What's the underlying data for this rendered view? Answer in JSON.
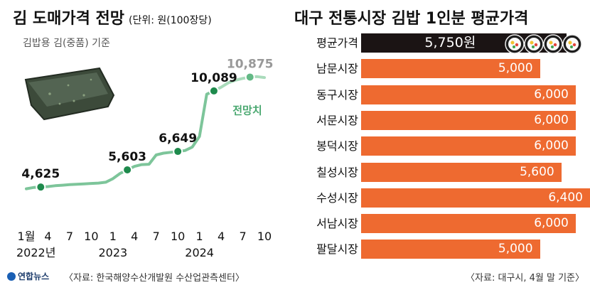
{
  "chart_data": [
    {
      "type": "line",
      "title": "김 도매가격 전망",
      "unit": "(단위: 원(100장당)",
      "subtitle": "김밥용 김(중품) 기준",
      "x_ticks": [
        "1월",
        "4",
        "7",
        "10",
        "1",
        "4",
        "7",
        "10",
        "1",
        "4",
        "7",
        "10"
      ],
      "year_labels": [
        "2022년",
        "2023",
        "2024"
      ],
      "series": [
        {
          "name": "",
          "points": [
            {
              "x": 0,
              "y": 4525
            },
            {
              "x": 1,
              "y": 4600
            },
            {
              "x": 2,
              "y": 4625
            },
            {
              "x": 3,
              "y": 4650
            },
            {
              "x": 4,
              "y": 4700
            },
            {
              "x": 5,
              "y": 4730
            },
            {
              "x": 6,
              "y": 4760
            },
            {
              "x": 7,
              "y": 4780
            },
            {
              "x": 8,
              "y": 4800
            },
            {
              "x": 9,
              "y": 4830
            },
            {
              "x": 10,
              "y": 4850
            },
            {
              "x": 11,
              "y": 4900
            },
            {
              "x": 12,
              "y": 5100
            },
            {
              "x": 13,
              "y": 5400
            },
            {
              "x": 14,
              "y": 5603
            },
            {
              "x": 15,
              "y": 5800
            },
            {
              "x": 16,
              "y": 5900
            },
            {
              "x": 17,
              "y": 5920
            },
            {
              "x": 18,
              "y": 6450
            },
            {
              "x": 19,
              "y": 6550
            },
            {
              "x": 20,
              "y": 6600
            },
            {
              "x": 21,
              "y": 6649
            },
            {
              "x": 22,
              "y": 6700
            },
            {
              "x": 23,
              "y": 6900
            },
            {
              "x": 24,
              "y": 7500
            },
            {
              "x": 25,
              "y": 9900
            },
            {
              "x": 26,
              "y": 10089
            }
          ]
        },
        {
          "name": "전망치",
          "points": [
            {
              "x": 26,
              "y": 10089
            },
            {
              "x": 27,
              "y": 10300
            },
            {
              "x": 28,
              "y": 10550
            },
            {
              "x": 29,
              "y": 10700
            },
            {
              "x": 30,
              "y": 10800
            },
            {
              "x": 31,
              "y": 10875
            },
            {
              "x": 32,
              "y": 10900
            },
            {
              "x": 33,
              "y": 10850
            }
          ]
        }
      ],
      "labels": [
        {
          "x": 2,
          "y": 4625,
          "text": "4,625"
        },
        {
          "x": 14,
          "y": 5603,
          "text": "5,603"
        },
        {
          "x": 21,
          "y": 6649,
          "text": "6,649"
        },
        {
          "x": 26,
          "y": 10089,
          "text": "10,089"
        },
        {
          "x": 31,
          "y": 10875,
          "text": "10,875"
        }
      ],
      "ylim": [
        3500,
        11500
      ],
      "grid": false,
      "source": "〈자료: 한국해양수산개발원 수산업관측센터〉"
    },
    {
      "type": "bar",
      "orientation": "horizontal",
      "title": "대구 전통시장 김밥 1인분 평균가격",
      "categories": [
        "평균가격",
        "남문시장",
        "동구시장",
        "서문시장",
        "봉덕시장",
        "칠성시장",
        "수성시장",
        "서남시장",
        "팔달시장"
      ],
      "values": [
        5750,
        5000,
        6000,
        6000,
        6000,
        5600,
        6400,
        6000,
        5000
      ],
      "value_labels": [
        "5,750원",
        "5,000",
        "6,000",
        "6,000",
        "6,000",
        "5,600",
        "6,400",
        "6,000",
        "5,000"
      ],
      "highlight": "평균가격",
      "xlim": [
        0,
        6400
      ],
      "source": "〈자료: 대구시, 4월 말 기준〉"
    }
  ],
  "colors": {
    "line": "#7dc59a",
    "forecast": "#a9dbbb",
    "marker": "#1e8a4c",
    "bar": "#ee6a30",
    "highlight": "#1b1414"
  },
  "logo_text": "연합뉴스"
}
